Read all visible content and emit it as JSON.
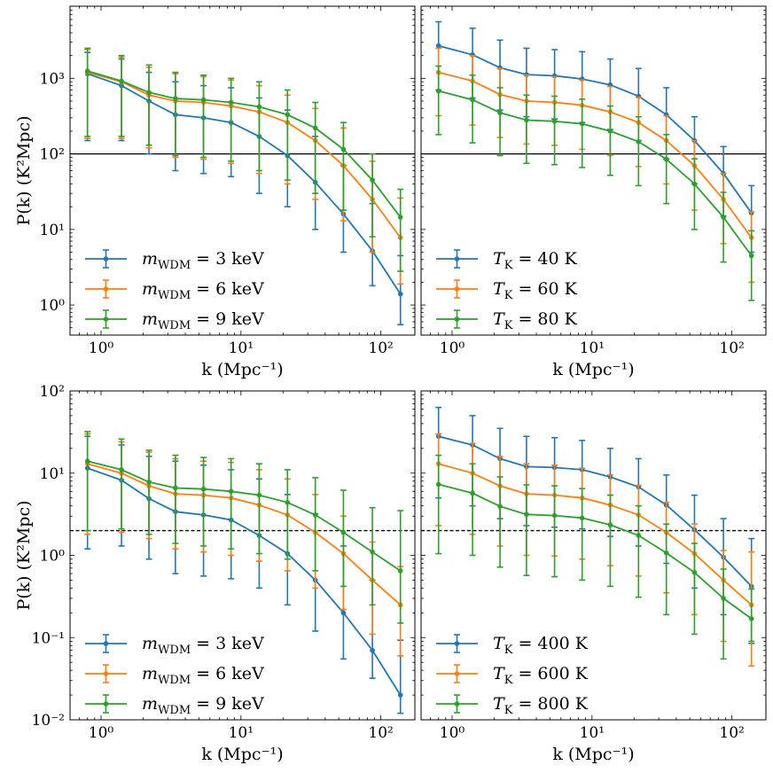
{
  "chart_data": [
    {
      "type": "line",
      "panel": "top-left",
      "xlabel": "k (Mpc⁻¹)",
      "ylabel": "P(k) (K²Mpc)",
      "xscale": "log",
      "yscale": "log",
      "xlim": [
        0.6,
        175
      ],
      "ylim": [
        0.4,
        9000
      ],
      "xticks": [
        {
          "v": 1,
          "label": "10⁰"
        },
        {
          "v": 10,
          "label": "10¹"
        },
        {
          "v": 100,
          "label": "10²"
        }
      ],
      "yticks": [
        {
          "v": 1,
          "label": "10⁰"
        },
        {
          "v": 10,
          "label": "10¹"
        },
        {
          "v": 100,
          "label": "10²"
        },
        {
          "v": 1000,
          "label": "10³"
        }
      ],
      "hline": {
        "y": 100,
        "style": "solid"
      },
      "legend_placement": "lower-left",
      "x": [
        0.8,
        1.4,
        2.2,
        3.4,
        5.4,
        8.5,
        13.5,
        21.5,
        34,
        54,
        87,
        138
      ],
      "series": [
        {
          "name": "m_WDM = 3 keV",
          "label_main": "m",
          "label_sub": "WDM",
          "label_rest": " = 3 keV",
          "color": "#1f77b4",
          "values": [
            1150,
            800,
            500,
            330,
            300,
            260,
            170,
            95,
            42,
            16,
            5.2,
            1.4
          ],
          "err_lo": [
            150,
            150,
            100,
            60,
            55,
            50,
            30,
            20,
            10,
            5,
            1.8,
            0.55
          ],
          "err_hi": [
            2200,
            1800,
            1200,
            900,
            800,
            750,
            550,
            380,
            170,
            70,
            22,
            4.5
          ]
        },
        {
          "name": "m_WDM = 6 keV",
          "label_main": "m",
          "label_sub": "WDM",
          "label_rest": " = 6 keV",
          "color": "#ff7f0e",
          "values": [
            1200,
            900,
            600,
            500,
            480,
            430,
            360,
            260,
            150,
            70,
            25,
            7.8
          ],
          "err_lo": [
            160,
            160,
            120,
            90,
            85,
            75,
            55,
            40,
            25,
            13,
            5,
            1.9
          ],
          "err_hi": [
            2400,
            1900,
            1400,
            1150,
            1050,
            950,
            800,
            600,
            400,
            220,
            80,
            26
          ]
        },
        {
          "name": "m_WDM = 9 keV",
          "label_main": "m",
          "label_sub": "WDM",
          "label_rest": " = 9 keV",
          "color": "#2ca02c",
          "values": [
            1250,
            920,
            650,
            540,
            520,
            480,
            420,
            330,
            220,
            115,
            45,
            14.5
          ],
          "err_lo": [
            170,
            170,
            130,
            95,
            90,
            80,
            60,
            45,
            30,
            18,
            8,
            2.8
          ],
          "err_hi": [
            2500,
            2000,
            1500,
            1200,
            1100,
            1000,
            900,
            700,
            480,
            260,
            100,
            34
          ]
        }
      ]
    },
    {
      "type": "line",
      "panel": "top-right",
      "xlabel": "k (Mpc⁻¹)",
      "ylabel": "",
      "xscale": "log",
      "yscale": "log",
      "xlim": [
        0.6,
        175
      ],
      "ylim": [
        0.4,
        9000
      ],
      "xticks": [
        {
          "v": 1,
          "label": "10⁰"
        },
        {
          "v": 10,
          "label": "10¹"
        },
        {
          "v": 100,
          "label": "10²"
        }
      ],
      "yticks": [],
      "hline": {
        "y": 100,
        "style": "solid"
      },
      "legend_placement": "lower-left",
      "x": [
        0.8,
        1.4,
        2.2,
        3.4,
        5.4,
        8.5,
        13.5,
        21.5,
        34,
        54,
        87,
        138
      ],
      "series": [
        {
          "name": "T_K = 40 K",
          "label_main": "T",
          "label_sub": "K",
          "label_rest": " = 40 K",
          "color": "#1f77b4",
          "values": [
            2700,
            2050,
            1380,
            1120,
            1080,
            980,
            820,
            580,
            330,
            150,
            55,
            16.5
          ],
          "err_lo": [
            700,
            550,
            380,
            310,
            290,
            260,
            210,
            150,
            85,
            40,
            15,
            5
          ],
          "err_hi": [
            5600,
            4600,
            3200,
            2500,
            2400,
            2250,
            1800,
            1350,
            750,
            310,
            125,
            38
          ]
        },
        {
          "name": "T_K = 60 K",
          "label_main": "T",
          "label_sub": "K",
          "label_rest": " = 60 K",
          "color": "#ff7f0e",
          "values": [
            1200,
            920,
            610,
            500,
            480,
            440,
            360,
            260,
            150,
            70,
            25,
            7.8
          ],
          "err_lo": [
            320,
            240,
            165,
            135,
            130,
            115,
            95,
            68,
            40,
            18,
            6.5,
            2
          ],
          "err_hi": [
            2500,
            2000,
            1350,
            1100,
            1050,
            950,
            780,
            560,
            320,
            150,
            55,
            17
          ]
        },
        {
          "name": "T_K = 80 K",
          "label_main": "T",
          "label_sub": "K",
          "label_rest": " = 80 K",
          "color": "#2ca02c",
          "values": [
            680,
            520,
            350,
            280,
            270,
            250,
            200,
            145,
            85,
            40,
            14.5,
            4.5
          ],
          "err_lo": [
            180,
            140,
            95,
            75,
            72,
            66,
            52,
            38,
            22,
            10,
            3.7,
            1.15
          ],
          "err_hi": [
            1450,
            1100,
            750,
            600,
            580,
            530,
            430,
            310,
            180,
            86,
            31,
            9.6
          ]
        }
      ]
    },
    {
      "type": "line",
      "panel": "bottom-left",
      "xlabel": "k (Mpc⁻¹)",
      "ylabel": "P(k) (K²Mpc)",
      "xscale": "log",
      "yscale": "log",
      "xlim": [
        0.6,
        175
      ],
      "ylim": [
        0.01,
        100
      ],
      "xticks": [
        {
          "v": 1,
          "label": "10⁰"
        },
        {
          "v": 10,
          "label": "10¹"
        },
        {
          "v": 100,
          "label": "10²"
        }
      ],
      "yticks": [
        {
          "v": 0.01,
          "label": "10⁻²"
        },
        {
          "v": 0.1,
          "label": "10⁻¹"
        },
        {
          "v": 1,
          "label": "10⁰"
        },
        {
          "v": 10,
          "label": "10¹"
        },
        {
          "v": 100,
          "label": "10²"
        }
      ],
      "hline": {
        "y": 2,
        "style": "dashed"
      },
      "legend_placement": "lower-left",
      "x": [
        0.8,
        1.4,
        2.2,
        3.4,
        5.4,
        8.5,
        13.5,
        21.5,
        34,
        54,
        87,
        138
      ],
      "series": [
        {
          "name": "m_WDM = 3 keV",
          "label_main": "m",
          "label_sub": "WDM",
          "label_rest": " = 3 keV",
          "color": "#1f77b4",
          "values": [
            11.5,
            8.2,
            4.9,
            3.4,
            3.1,
            2.7,
            1.75,
            1.05,
            0.5,
            0.2,
            0.07,
            0.02
          ],
          "err_lo": [
            1.2,
            1.3,
            0.9,
            0.6,
            0.56,
            0.52,
            0.4,
            0.25,
            0.12,
            0.055,
            0.032,
            0.012
          ],
          "err_hi": [
            28,
            22,
            16,
            14,
            12.5,
            11,
            8.5,
            5.5,
            3.2,
            1.3,
            0.5,
            0.093
          ]
        },
        {
          "name": "m_WDM = 6 keV",
          "label_main": "m",
          "label_sub": "WDM",
          "label_rest": " = 6 keV",
          "color": "#ff7f0e",
          "values": [
            13,
            10,
            7,
            5.6,
            5.4,
            5.0,
            4.1,
            3.1,
            1.9,
            1.05,
            0.5,
            0.25
          ],
          "err_lo": [
            1.8,
            1.9,
            1.6,
            1.2,
            1.1,
            1.0,
            0.85,
            0.65,
            0.4,
            0.22,
            0.11,
            0.06
          ],
          "err_hi": [
            30,
            24,
            18,
            15,
            14,
            13.5,
            11,
            8.5,
            5.5,
            3.0,
            1.45,
            0.73
          ]
        },
        {
          "name": "m_WDM = 9 keV",
          "label_main": "m",
          "label_sub": "WDM",
          "label_rest": " = 9 keV",
          "color": "#2ca02c",
          "values": [
            14,
            11,
            7.8,
            6.6,
            6.4,
            6.0,
            5.4,
            4.4,
            3.1,
            1.9,
            1.1,
            0.65
          ],
          "err_lo": [
            2.0,
            2.1,
            1.8,
            1.4,
            1.3,
            1.2,
            1.05,
            0.9,
            0.65,
            0.42,
            0.25,
            0.15
          ],
          "err_hi": [
            32,
            26,
            19,
            16.5,
            15.5,
            15,
            13,
            11,
            8.8,
            6.2,
            3.8,
            3.5
          ]
        }
      ]
    },
    {
      "type": "line",
      "panel": "bottom-right",
      "xlabel": "k (Mpc⁻¹)",
      "ylabel": "",
      "xscale": "log",
      "yscale": "log",
      "xlim": [
        0.6,
        175
      ],
      "ylim": [
        0.01,
        100
      ],
      "xticks": [
        {
          "v": 1,
          "label": "10⁰"
        },
        {
          "v": 10,
          "label": "10¹"
        },
        {
          "v": 100,
          "label": "10²"
        }
      ],
      "yticks": [],
      "hline": {
        "y": 2,
        "style": "dashed"
      },
      "legend_placement": "lower-left",
      "x": [
        0.8,
        1.4,
        2.2,
        3.4,
        5.4,
        8.5,
        13.5,
        21.5,
        34,
        54,
        87,
        138
      ],
      "series": [
        {
          "name": "T_K = 400 K",
          "label_main": "T",
          "label_sub": "K",
          "label_rest": " = 400 K",
          "color": "#1f77b4",
          "values": [
            28,
            22,
            15,
            12,
            11.7,
            11,
            9,
            6.8,
            4.1,
            2.05,
            0.95,
            0.42
          ],
          "err_lo": [
            5,
            4,
            2.8,
            2.3,
            2.2,
            2.1,
            1.7,
            1.3,
            0.8,
            0.4,
            0.19,
            0.085
          ],
          "err_hi": [
            63,
            50,
            35,
            28,
            27,
            25,
            20,
            15,
            9.5,
            5.4,
            2.8,
            1.6
          ]
        },
        {
          "name": "T_K = 600 K",
          "label_main": "T",
          "label_sub": "K",
          "label_rest": " = 600 K",
          "color": "#ff7f0e",
          "values": [
            13,
            10,
            7,
            5.6,
            5.4,
            5.0,
            4.1,
            3.1,
            1.9,
            1.05,
            0.5,
            0.25
          ],
          "err_lo": [
            2.3,
            1.8,
            1.3,
            1.0,
            0.98,
            0.9,
            0.75,
            0.56,
            0.35,
            0.19,
            0.09,
            0.045
          ],
          "err_hi": [
            30,
            23,
            16,
            13,
            12.5,
            11.5,
            9.5,
            7.1,
            4.4,
            2.4,
            1.15,
            1.1
          ]
        },
        {
          "name": "T_K = 800 K",
          "label_main": "T",
          "label_sub": "K",
          "label_rest": " = 800 K",
          "color": "#2ca02c",
          "values": [
            7.3,
            5.7,
            3.95,
            3.15,
            3.05,
            2.85,
            2.35,
            1.75,
            1.07,
            0.62,
            0.3,
            0.17
          ],
          "err_lo": [
            1.05,
            1.0,
            0.72,
            0.57,
            0.55,
            0.5,
            0.42,
            0.31,
            0.19,
            0.11,
            0.055,
            0.09
          ],
          "err_hi": [
            16.5,
            13,
            9,
            7.2,
            7,
            6.5,
            5.4,
            4.0,
            2.4,
            1.4,
            0.68,
            0.39
          ]
        }
      ]
    }
  ]
}
